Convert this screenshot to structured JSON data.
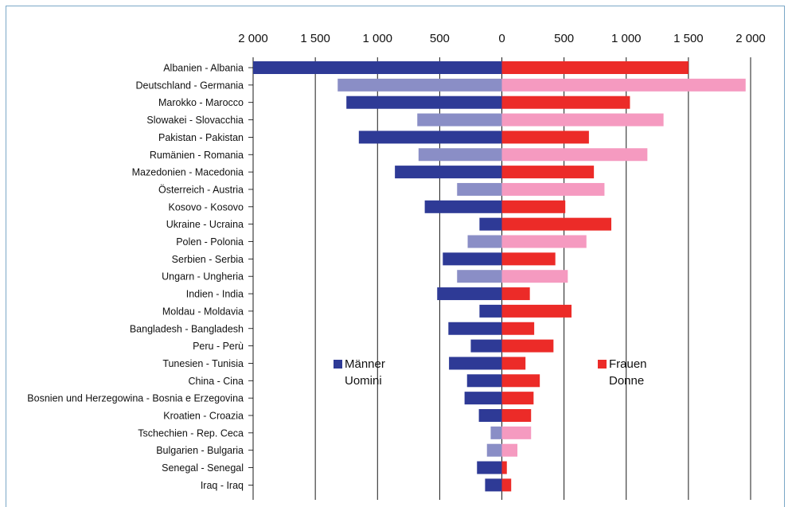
{
  "chart_data": {
    "type": "bar",
    "orientation": "horizontal-diverging",
    "xlim": [
      -2000,
      2000
    ],
    "xticks": [
      -2000,
      -1500,
      -1000,
      -500,
      0,
      500,
      1000,
      1500,
      2000
    ],
    "xtick_labels": [
      "2 000",
      "1 500",
      "1 000",
      "500",
      "0",
      "500",
      "1 000",
      "1 500",
      "2 000"
    ],
    "grid": true,
    "categories": [
      "Albanien - Albania",
      "Deutschland - Germania",
      "Marokko - Marocco",
      "Slowakei - Slovacchia",
      "Pakistan - Pakistan",
      "Rumänien - Romania",
      "Mazedonien - Macedonia",
      "Österreich - Austria",
      "Kosovo - Kosovo",
      "Ukraine - Ucraina",
      "Polen - Polonia",
      "Serbien - Serbia",
      "Ungarn - Ungheria",
      "Indien - India",
      "Moldau - Moldavia",
      "Bangladesh - Bangladesh",
      "Peru - Perù",
      "Tunesien - Tunisia",
      "China - Cina",
      "Bosnien und Herzegowina - Bosnia e Erzegovina",
      "Kroatien - Croazia",
      "Tschechien - Rep. Ceca",
      "Bulgarien - Bulgaria",
      "Senegal - Senegal",
      "Iraq - Iraq"
    ],
    "series": [
      {
        "name": "Männer Uomini",
        "side": "left",
        "values": [
          2000,
          1320,
          1250,
          680,
          1150,
          670,
          860,
          360,
          620,
          180,
          275,
          475,
          360,
          520,
          180,
          430,
          250,
          425,
          280,
          300,
          185,
          90,
          120,
          200,
          135
        ]
      },
      {
        "name": "Frauen Donne",
        "side": "right",
        "values": [
          1500,
          1960,
          1030,
          1300,
          700,
          1170,
          740,
          825,
          510,
          880,
          680,
          430,
          530,
          225,
          560,
          260,
          415,
          190,
          305,
          255,
          235,
          235,
          125,
          40,
          75
        ]
      }
    ],
    "highlight_rows": [
      1,
      3,
      5,
      7,
      10,
      12,
      21,
      22
    ],
    "colors": {
      "male": "#2e3a96",
      "male_light": "#8a8ec6",
      "female": "#ec2b28",
      "female_light": "#f59ac0",
      "grid": "#000000",
      "frame": "#7aa7c7"
    },
    "legend": [
      {
        "line1": "Männer",
        "line2": "Uomini",
        "color": "#2e3a96"
      },
      {
        "line1": "Frauen",
        "line2": "Donne",
        "color": "#ec2b28"
      }
    ],
    "legend_placement": "center"
  }
}
